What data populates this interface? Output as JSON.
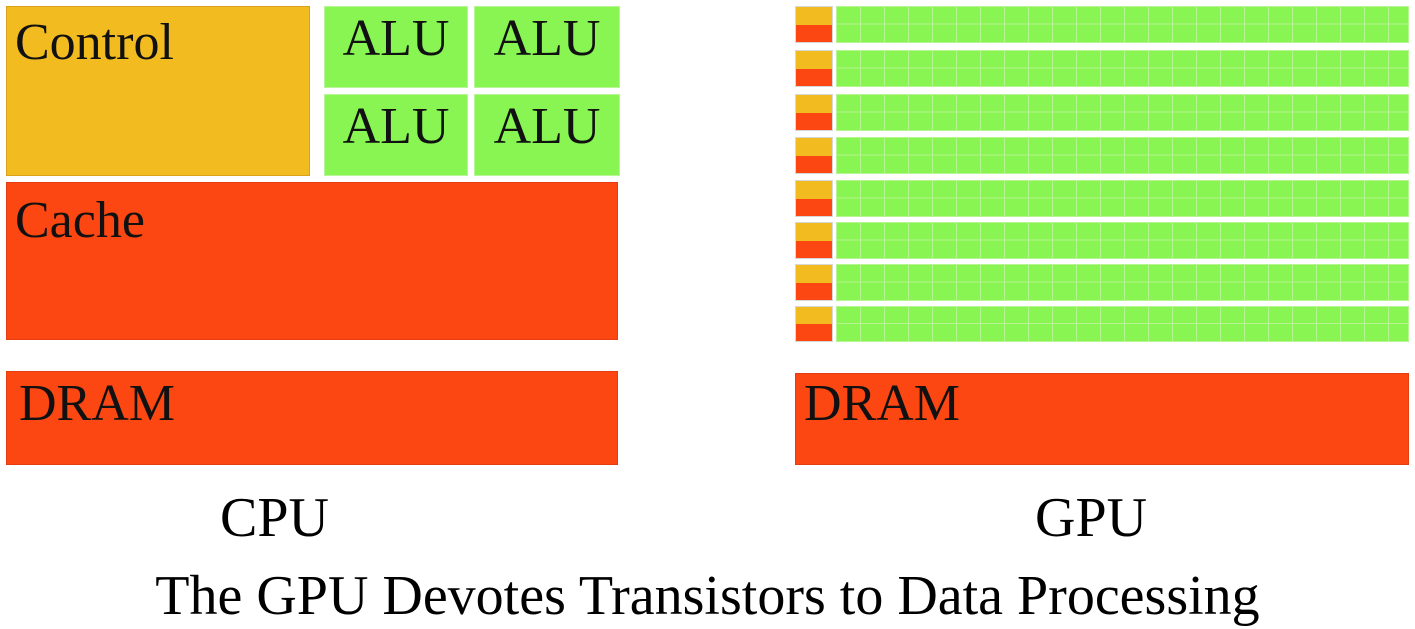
{
  "cpu": {
    "control_label": "Control",
    "alu_labels": [
      "ALU",
      "ALU",
      "ALU",
      "ALU"
    ],
    "cache_label": "Cache",
    "dram_label": "DRAM",
    "caption": "CPU"
  },
  "gpu": {
    "dram_label": "DRAM",
    "caption": "GPU"
  },
  "title": "The GPU Devotes Transistors to Data Processing",
  "colors": {
    "control": "#f2bb1f",
    "alu": "#88f552",
    "cache_dram": "#fc4713"
  }
}
